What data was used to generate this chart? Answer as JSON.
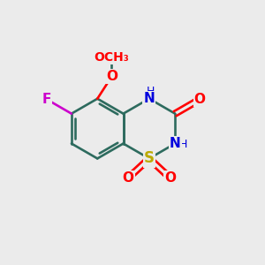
{
  "background_color": "#ebebeb",
  "atom_colors": {
    "C": "#2d6b5e",
    "N": "#0000dd",
    "O": "#ff0000",
    "S": "#bbaa00",
    "F": "#cc00cc",
    "H": "#404040"
  },
  "bond_color": "#2d6b5e",
  "bond_lw": 1.9,
  "font_size": 11,
  "figsize": [
    3.0,
    3.0
  ],
  "dpi": 100
}
